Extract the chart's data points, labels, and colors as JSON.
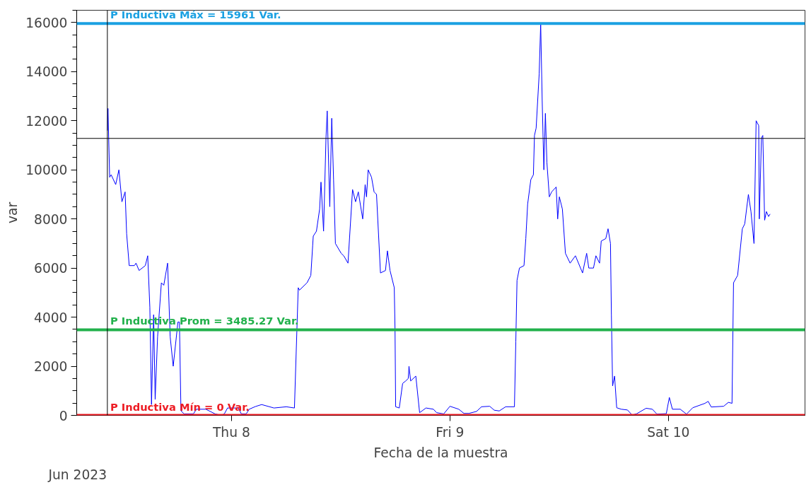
{
  "chart_data": {
    "type": "line",
    "xlabel": "Fecha de la muestra",
    "ylabel": "var",
    "annotations": [
      "Jun 2023"
    ],
    "xlim": [
      "2023-06-07T07:00",
      "2023-06-10T15:00"
    ],
    "xticks": [
      {
        "value": "2023-06-08",
        "label": "Thu 8"
      },
      {
        "value": "2023-06-09",
        "label": "Fri 9"
      },
      {
        "value": "2023-06-10",
        "label": "Sat 10"
      }
    ],
    "ylim": [
      0,
      16500
    ],
    "yticks": [
      0,
      2000,
      4000,
      6000,
      8000,
      10000,
      12000,
      14000,
      16000
    ],
    "grid": false,
    "marker": "none",
    "line_style": "solid",
    "ref_lines": [
      {
        "axis": "y",
        "value": 15961,
        "label": "P Inductiva Máx = 15961 Var.",
        "color": "#1ba1e2"
      },
      {
        "axis": "y",
        "value": 3485.27,
        "label": "P Inductiva Prom = 3485.27 Var.",
        "color": "#22b14c"
      },
      {
        "axis": "y",
        "value": 0,
        "label": "P Inductiva Mín = 0 Var.",
        "color": "#ed1c24"
      },
      {
        "axis": "y",
        "value": 11280,
        "label": null,
        "color": "#000000"
      },
      {
        "axis": "x",
        "value": "2023-06-07T10:22",
        "label": null,
        "color": "#000000"
      }
    ],
    "series": [
      {
        "color": "#0000ff",
        "x": [
          "2023-06-07T10:22",
          "2023-06-07T10:26",
          "2023-06-07T10:37",
          "2023-06-07T10:47",
          "2023-06-07T11:17",
          "2023-06-07T11:38",
          "2023-06-07T11:58",
          "2023-06-07T12:19",
          "2023-06-07T12:29",
          "2023-06-07T12:46",
          "2023-06-07T13:20",
          "2023-06-07T13:31",
          "2023-06-07T13:51",
          "2023-06-07T14:32",
          "2023-06-07T14:48",
          "2023-06-07T15:02",
          "2023-06-07T15:13",
          "2023-06-07T15:27",
          "2023-06-07T15:37",
          "2023-06-07T15:53",
          "2023-06-07T16:18",
          "2023-06-07T16:34",
          "2023-06-07T16:59",
          "2023-06-07T17:16",
          "2023-06-07T17:36",
          "2023-06-07T18:07",
          "2023-06-07T18:17",
          "2023-06-07T18:27",
          "2023-06-07T18:47",
          "2023-06-07T19:49",
          "2023-06-07T20:09",
          "2023-06-07T21:11",
          "2023-06-07T22:12",
          "2023-06-07T22:53",
          "2023-06-07T23:13",
          "2023-06-07T23:34",
          "2023-06-08T00:45",
          "2023-06-08T01:05",
          "2023-06-08T01:37",
          "2023-06-08T01:57",
          "2023-06-08T02:38",
          "2023-06-08T03:19",
          "2023-06-08T04:40",
          "2023-06-08T06:02",
          "2023-06-08T06:55",
          "2023-06-08T07:20",
          "2023-06-08T07:28",
          "2023-06-08T08:18",
          "2023-06-08T08:43",
          "2023-06-08T08:55",
          "2023-06-08T08:59",
          "2023-06-08T09:20",
          "2023-06-08T09:41",
          "2023-06-08T09:50",
          "2023-06-08T10:07",
          "2023-06-08T10:23",
          "2023-06-08T10:31",
          "2023-06-08T10:48",
          "2023-06-08T11:01",
          "2023-06-08T11:13",
          "2023-06-08T11:25",
          "2023-06-08T12:03",
          "2023-06-08T12:20",
          "2023-06-08T12:48",
          "2023-06-08T13:01",
          "2023-06-08T13:18",
          "2023-06-08T13:38",
          "2023-06-08T13:56",
          "2023-06-08T14:25",
          "2023-06-08T14:41",
          "2023-06-08T14:50",
          "2023-06-08T15:01",
          "2023-06-08T15:23",
          "2023-06-08T15:40",
          "2023-06-08T15:56",
          "2023-06-08T16:22",
          "2023-06-08T16:55",
          "2023-06-08T17:08",
          "2023-06-08T17:25",
          "2023-06-08T17:53",
          "2023-06-08T17:58",
          "2023-06-08T18:02",
          "2023-06-08T18:26",
          "2023-06-08T18:48",
          "2023-06-08T19:08",
          "2023-06-08T19:25",
          "2023-06-08T19:30",
          "2023-06-08T19:41",
          "2023-06-08T20:15",
          "2023-06-08T20:40",
          "2023-06-08T21:22",
          "2023-06-08T22:11",
          "2023-06-08T22:32",
          "2023-06-08T23:19",
          "2023-06-09T00:00",
          "2023-06-09T00:58",
          "2023-06-09T01:32",
          "2023-06-09T02:05",
          "2023-06-09T02:55",
          "2023-06-09T03:28",
          "2023-06-09T04:22",
          "2023-06-09T04:52",
          "2023-06-09T05:25",
          "2023-06-09T06:07",
          "2023-06-09T07:05",
          "2023-06-09T07:14",
          "2023-06-09T07:22",
          "2023-06-09T07:38",
          "2023-06-09T08:08",
          "2023-06-09T08:20",
          "2023-06-09T08:32",
          "2023-06-09T08:53",
          "2023-06-09T09:10",
          "2023-06-09T09:17",
          "2023-06-09T09:28",
          "2023-06-09T09:48",
          "2023-06-09T09:58",
          "2023-06-09T10:08",
          "2023-06-09T10:19",
          "2023-06-09T10:29",
          "2023-06-09T10:39",
          "2023-06-09T10:55",
          "2023-06-09T11:10",
          "2023-06-09T11:40",
          "2023-06-09T11:50",
          "2023-06-09T12:01",
          "2023-06-09T12:21",
          "2023-06-09T12:41",
          "2023-06-09T13:12",
          "2023-06-09T13:47",
          "2023-06-09T14:34",
          "2023-06-09T15:01",
          "2023-06-09T15:15",
          "2023-06-09T15:46",
          "2023-06-09T16:02",
          "2023-06-09T16:26",
          "2023-06-09T16:37",
          "2023-06-09T17:07",
          "2023-06-09T17:22",
          "2023-06-09T17:38",
          "2023-06-09T17:44",
          "2023-06-09T17:52",
          "2023-06-09T18:05",
          "2023-06-09T18:19",
          "2023-06-09T18:49",
          "2023-06-09T19:30",
          "2023-06-09T20:01",
          "2023-06-09T20:32",
          "2023-06-09T21:33",
          "2023-06-09T22:14",
          "2023-06-09T22:44",
          "2023-06-09T23:46",
          "2023-06-10T00:06",
          "2023-06-10T00:26",
          "2023-06-10T01:18",
          "2023-06-10T01:59",
          "2023-06-10T02:40",
          "2023-06-10T04:01",
          "2023-06-10T04:22",
          "2023-06-10T04:42",
          "2023-06-10T06:04",
          "2023-06-10T06:35",
          "2023-06-10T06:59",
          "2023-06-10T07:09",
          "2023-06-10T07:36",
          "2023-06-10T08:07",
          "2023-06-10T08:23",
          "2023-06-10T08:47",
          "2023-06-10T09:04",
          "2023-06-10T09:24",
          "2023-06-10T09:38",
          "2023-06-10T09:55",
          "2023-06-10T09:59",
          "2023-06-10T10:13",
          "2023-06-10T10:22",
          "2023-06-10T10:34",
          "2023-06-10T10:46",
          "2023-06-10T11:00",
          "2023-06-10T11:10"
        ],
        "values": [
          11600,
          12500,
          9700,
          9800,
          9400,
          10000,
          8700,
          9100,
          7400,
          6100,
          6100,
          6200,
          5900,
          6100,
          6500,
          4400,
          440,
          4100,
          650,
          3200,
          5400,
          5300,
          6200,
          3200,
          2000,
          3800,
          3800,
          190,
          60,
          60,
          250,
          250,
          60,
          0,
          60,
          300,
          300,
          60,
          60,
          250,
          360,
          440,
          300,
          350,
          300,
          5200,
          5100,
          5400,
          5700,
          6900,
          7300,
          7500,
          8400,
          9500,
          7500,
          11300,
          12400,
          8500,
          12100,
          9600,
          7000,
          6600,
          6500,
          6200,
          7500,
          9200,
          8700,
          9100,
          8000,
          9400,
          8900,
          10000,
          9700,
          9100,
          9000,
          5800,
          5900,
          6700,
          5900,
          5200,
          3500,
          350,
          300,
          1300,
          1400,
          1500,
          2000,
          1400,
          1600,
          110,
          300,
          250,
          110,
          60,
          370,
          250,
          80,
          80,
          160,
          350,
          370,
          210,
          180,
          350,
          350,
          3000,
          5500,
          6000,
          6100,
          7200,
          8600,
          9600,
          9800,
          11400,
          11700,
          13900,
          15960,
          12800,
          10000,
          12300,
          10300,
          8900,
          9100,
          9300,
          8000,
          8900,
          8400,
          6600,
          6200,
          6500,
          5800,
          6600,
          6000,
          6000,
          6500,
          6200,
          7100,
          7200,
          7600,
          7000,
          4100,
          1200,
          1600,
          310,
          250,
          220,
          10,
          70,
          290,
          250,
          50,
          70,
          730,
          250,
          250,
          50,
          310,
          490,
          570,
          340,
          370,
          530,
          490,
          5400,
          5700,
          7600,
          7800,
          9000,
          8300,
          7000,
          12000,
          11800,
          8000,
          11300,
          11400,
          7950,
          8300,
          8100,
          8200
        ]
      }
    ]
  }
}
